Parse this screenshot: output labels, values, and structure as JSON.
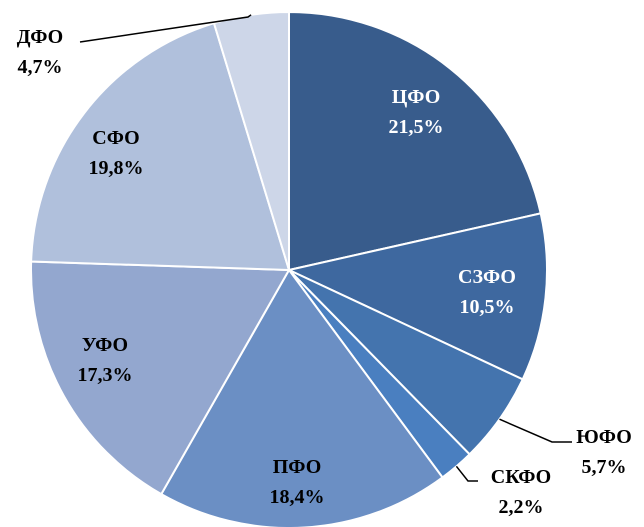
{
  "chart_data": {
    "type": "pie",
    "categories": [
      "ЦФО",
      "СЗФО",
      "ЮФО",
      "СКФО",
      "ПФО",
      "УФО",
      "СФО",
      "ДФО"
    ],
    "values": [
      21.5,
      10.5,
      5.7,
      2.2,
      18.4,
      17.3,
      19.8,
      4.7
    ],
    "value_labels": [
      "21,5%",
      "10,5%",
      "5,7%",
      "2,2%",
      "18,4%",
      "17,3%",
      "19,8%",
      "4,7%"
    ],
    "colors": [
      "#385c8c",
      "#3e689f",
      "#4474ae",
      "#4a7fc0",
      "#6b8fc4",
      "#93a7cf",
      "#b0c0dc",
      "#cdd6e8"
    ],
    "label_colors": [
      "#ffffff",
      "#ffffff",
      "#000000",
      "#000000",
      "#000000",
      "#000000",
      "#000000",
      "#000000"
    ],
    "start_angle_deg": 0,
    "direction": "clockwise",
    "legend": "none"
  }
}
